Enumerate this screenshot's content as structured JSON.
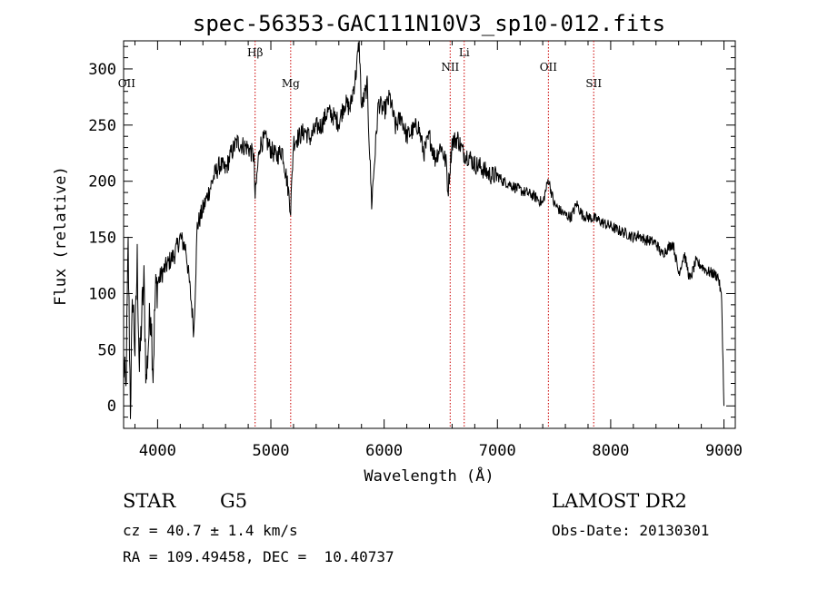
{
  "chart_data": {
    "type": "line",
    "title": "spec-56353-GAC111N10V3_sp10-012.fits",
    "xlabel": "Wavelength (Å)",
    "ylabel": "Flux (relative)",
    "xlim": [
      3700,
      9100
    ],
    "ylim": [
      -20,
      325
    ],
    "x_ticks": [
      4000,
      5000,
      6000,
      7000,
      8000,
      9000
    ],
    "y_ticks": [
      0,
      50,
      100,
      150,
      200,
      250,
      300
    ],
    "grid": false,
    "line_color": "#000000",
    "marker_color": "#cc0000",
    "series": [
      {
        "name": "flux",
        "x": [
          3700,
          3720,
          3740,
          3760,
          3780,
          3800,
          3820,
          3840,
          3860,
          3880,
          3900,
          3920,
          3940,
          3960,
          3980,
          4000,
          4050,
          4100,
          4150,
          4200,
          4250,
          4300,
          4320,
          4350,
          4400,
          4450,
          4500,
          4550,
          4600,
          4650,
          4700,
          4750,
          4800,
          4850,
          4861,
          4900,
          4950,
          5000,
          5050,
          5100,
          5150,
          5175,
          5200,
          5250,
          5300,
          5350,
          5400,
          5450,
          5500,
          5550,
          5600,
          5650,
          5700,
          5750,
          5780,
          5800,
          5850,
          5890,
          5950,
          6000,
          6050,
          6100,
          6150,
          6200,
          6250,
          6300,
          6350,
          6400,
          6450,
          6500,
          6550,
          6563,
          6600,
          6650,
          6700,
          6750,
          6800,
          6850,
          6900,
          6950,
          7000,
          7050,
          7100,
          7150,
          7200,
          7250,
          7300,
          7350,
          7400,
          7450,
          7500,
          7550,
          7600,
          7650,
          7700,
          7750,
          7800,
          7850,
          7900,
          7950,
          8000,
          8050,
          8100,
          8150,
          8200,
          8250,
          8300,
          8350,
          8400,
          8450,
          8500,
          8550,
          8600,
          8650,
          8700,
          8750,
          8800,
          8850,
          8900,
          8950,
          8980,
          9000
        ],
        "values": [
          40,
          10,
          140,
          0,
          100,
          50,
          130,
          30,
          80,
          110,
          20,
          60,
          90,
          30,
          100,
          110,
          120,
          128,
          135,
          150,
          140,
          90,
          65,
          160,
          175,
          190,
          205,
          215,
          210,
          225,
          235,
          232,
          230,
          222,
          185,
          232,
          238,
          228,
          222,
          228,
          195,
          175,
          235,
          240,
          245,
          238,
          248,
          250,
          262,
          258,
          252,
          270,
          265,
          295,
          325,
          265,
          285,
          180,
          270,
          262,
          275,
          248,
          258,
          240,
          245,
          250,
          225,
          240,
          220,
          232,
          215,
          190,
          235,
          238,
          225,
          222,
          215,
          213,
          208,
          205,
          205,
          200,
          198,
          195,
          192,
          190,
          188,
          185,
          180,
          202,
          180,
          174,
          170,
          168,
          180,
          170,
          168,
          167,
          165,
          162,
          160,
          157,
          155,
          153,
          150,
          152,
          148,
          147,
          145,
          135,
          140,
          145,
          118,
          135,
          112,
          128,
          125,
          120,
          118,
          115,
          95,
          0
        ]
      }
    ],
    "line_markers": [
      {
        "label": "OII",
        "x": 3727,
        "label_row": "lower",
        "show_line": false
      },
      {
        "label": "Hβ",
        "x": 4861,
        "label_row": "upper",
        "show_line": true
      },
      {
        "label": "Mg",
        "x": 5175,
        "label_row": "lower",
        "show_line": true
      },
      {
        "label": "NII",
        "x": 6583,
        "label_row": "middle",
        "show_line": true
      },
      {
        "label": "Li",
        "x": 6707,
        "label_row": "upper",
        "show_line": true
      },
      {
        "label": "OII",
        "x": 7450,
        "label_row": "middle",
        "show_line": true
      },
      {
        "label": "SII",
        "x": 7850,
        "label_row": "lower",
        "show_line": true
      }
    ]
  },
  "info": {
    "object_class": "STAR",
    "subclass": "G5",
    "survey": "LAMOST DR2",
    "redshift": "cz = 40.7 ± 1.4 km/s",
    "obs_date": "Obs-Date: 20130301",
    "coords": "RA = 109.49458, DEC =  10.40737"
  }
}
